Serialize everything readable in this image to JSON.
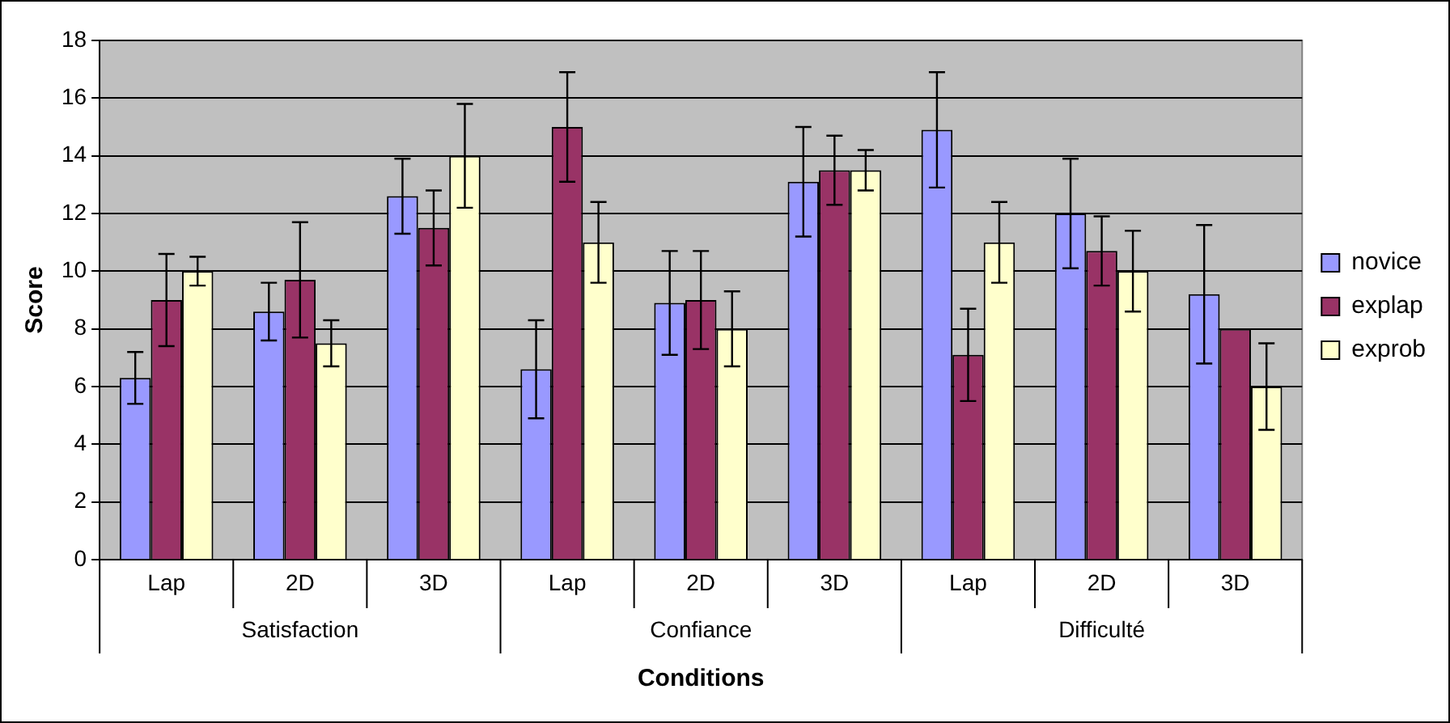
{
  "chart_data": {
    "type": "bar",
    "xlabel": "Conditions",
    "ylabel": "Score",
    "categories": [
      "Lap",
      "2D",
      "3D",
      "Lap",
      "2D",
      "3D",
      "Lap",
      "2D",
      "3D"
    ],
    "annotations": [
      "Satisfaction",
      "Confiance",
      "Difficulté"
    ],
    "series": [
      {
        "name": "novice",
        "color": "#9999ff",
        "values": [
          6.3,
          8.6,
          12.6,
          6.6,
          8.9,
          13.1,
          14.9,
          12.0,
          9.2
        ],
        "errors": [
          0.9,
          1.0,
          1.3,
          1.7,
          1.8,
          1.9,
          2.0,
          1.9,
          2.4
        ]
      },
      {
        "name": "explap",
        "color": "#993366",
        "values": [
          9.0,
          9.7,
          11.5,
          15.0,
          9.0,
          13.5,
          7.1,
          10.7,
          8.0
        ],
        "errors": [
          1.6,
          2.0,
          1.3,
          1.9,
          1.7,
          1.2,
          1.6,
          1.2,
          null
        ]
      },
      {
        "name": "exprob",
        "color": "#ffffcc",
        "values": [
          10.0,
          7.5,
          14.0,
          11.0,
          8.0,
          13.5,
          11.0,
          10.0,
          6.0
        ],
        "errors": [
          0.5,
          0.8,
          1.8,
          1.4,
          1.3,
          0.7,
          1.4,
          1.4,
          1.5
        ]
      }
    ],
    "ylim": [
      0,
      18
    ],
    "yticks": [
      0,
      2,
      4,
      6,
      8,
      10,
      12,
      14,
      16,
      18
    ],
    "grid": "y",
    "legend": "right"
  }
}
